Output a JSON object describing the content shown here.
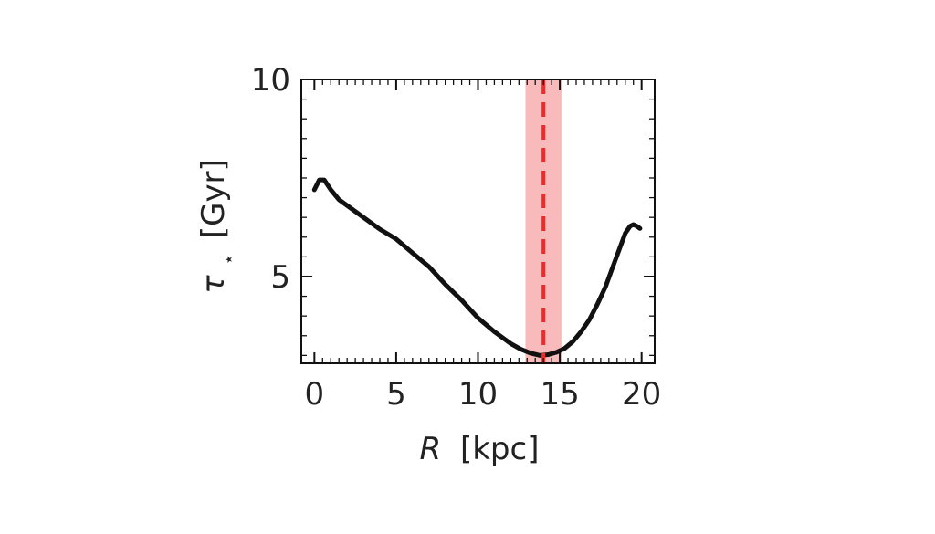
{
  "chart_data": {
    "type": "line",
    "xlabel": {
      "var": "R",
      "unit": "[kpc]"
    },
    "ylabel": {
      "var": "τ",
      "sub": "⋆",
      "unit": "[Gyr]"
    },
    "xlim": [
      -0.8,
      20.8
    ],
    "ylim": [
      2.8,
      10
    ],
    "xticks": [
      0,
      5,
      10,
      15,
      20
    ],
    "xtick_labels": [
      "0",
      "5",
      "10",
      "15",
      "20"
    ],
    "yticks": [
      5,
      10
    ],
    "ytick_labels": [
      "5",
      "10"
    ],
    "grid": false,
    "series": [
      {
        "color": "#111111",
        "x": [
          0.0,
          0.3,
          0.6,
          1.0,
          1.5,
          2.0,
          3.0,
          4.0,
          5.0,
          6.0,
          7.0,
          8.0,
          9.0,
          10.0,
          11.0,
          12.0,
          12.6,
          13.2,
          13.8,
          14.3,
          14.8,
          15.3,
          15.8,
          16.3,
          16.8,
          17.3,
          17.8,
          18.2,
          18.6,
          19.0,
          19.3,
          19.5,
          19.7,
          19.9
        ],
        "y": [
          7.2,
          7.45,
          7.45,
          7.2,
          6.95,
          6.8,
          6.5,
          6.2,
          5.95,
          5.6,
          5.25,
          4.8,
          4.4,
          3.95,
          3.6,
          3.3,
          3.16,
          3.06,
          3.0,
          3.02,
          3.08,
          3.18,
          3.35,
          3.6,
          3.9,
          4.3,
          4.75,
          5.2,
          5.65,
          6.1,
          6.28,
          6.32,
          6.28,
          6.22
        ]
      }
    ],
    "vline": {
      "x": 14.0,
      "color": "#ee2b2b",
      "style": "dashed"
    },
    "band": {
      "x0": 12.9,
      "x1": 15.1,
      "color": "#f6a3a3"
    }
  }
}
